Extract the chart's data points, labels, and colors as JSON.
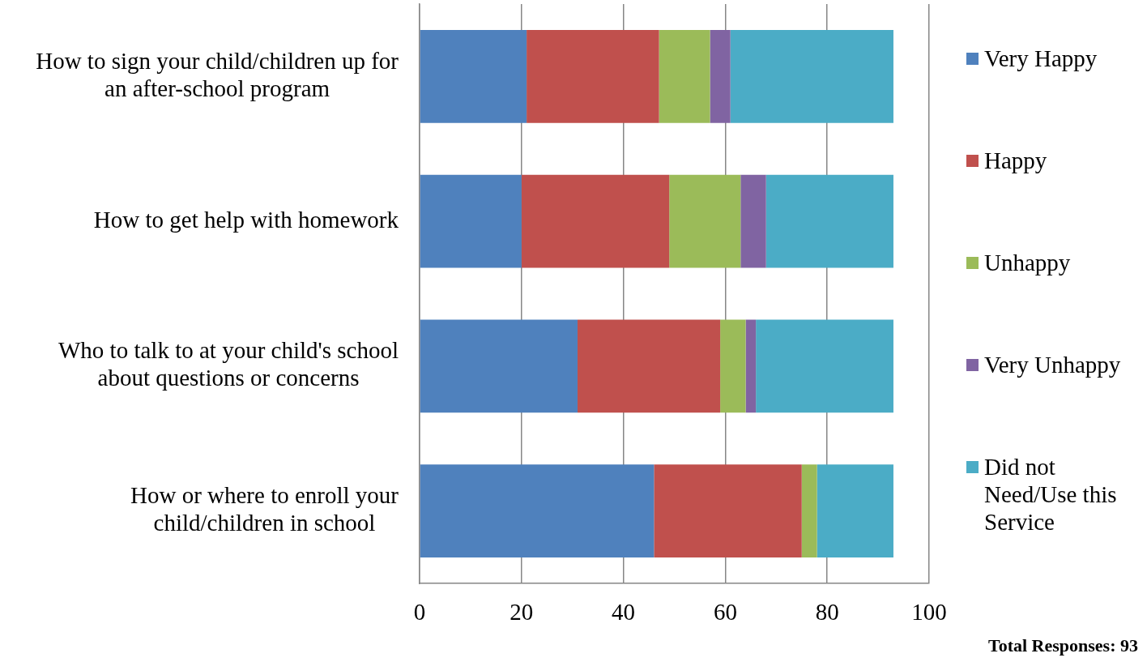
{
  "chart_data": {
    "type": "bar",
    "orientation": "horizontal",
    "stacked": true,
    "categories": [
      "How to sign your child/children up for an after-school program",
      "How to get help with homework",
      "Who to talk to at your child's school about questions or concerns",
      "How or where to enroll your child/children in school"
    ],
    "series": [
      {
        "name": "Very Happy",
        "color": "#4f81bd",
        "values": [
          21,
          20,
          31,
          46
        ]
      },
      {
        "name": "Happy",
        "color": "#c0504d",
        "values": [
          26,
          29,
          28,
          29
        ]
      },
      {
        "name": "Unhappy",
        "color": "#9bbb59",
        "values": [
          10,
          14,
          5,
          3
        ]
      },
      {
        "name": "Very Unhappy",
        "color": "#8064a2",
        "values": [
          4,
          5,
          2,
          0
        ]
      },
      {
        "name": "Did not Need/Use this Service",
        "color": "#4bacc6",
        "values": [
          32,
          25,
          27,
          15
        ]
      }
    ],
    "xlim": [
      0,
      100
    ],
    "xticks": [
      0,
      20,
      40,
      60,
      80,
      100
    ],
    "grid": "x",
    "legend": "right",
    "annotations": [
      "Total Responses: 93"
    ]
  }
}
